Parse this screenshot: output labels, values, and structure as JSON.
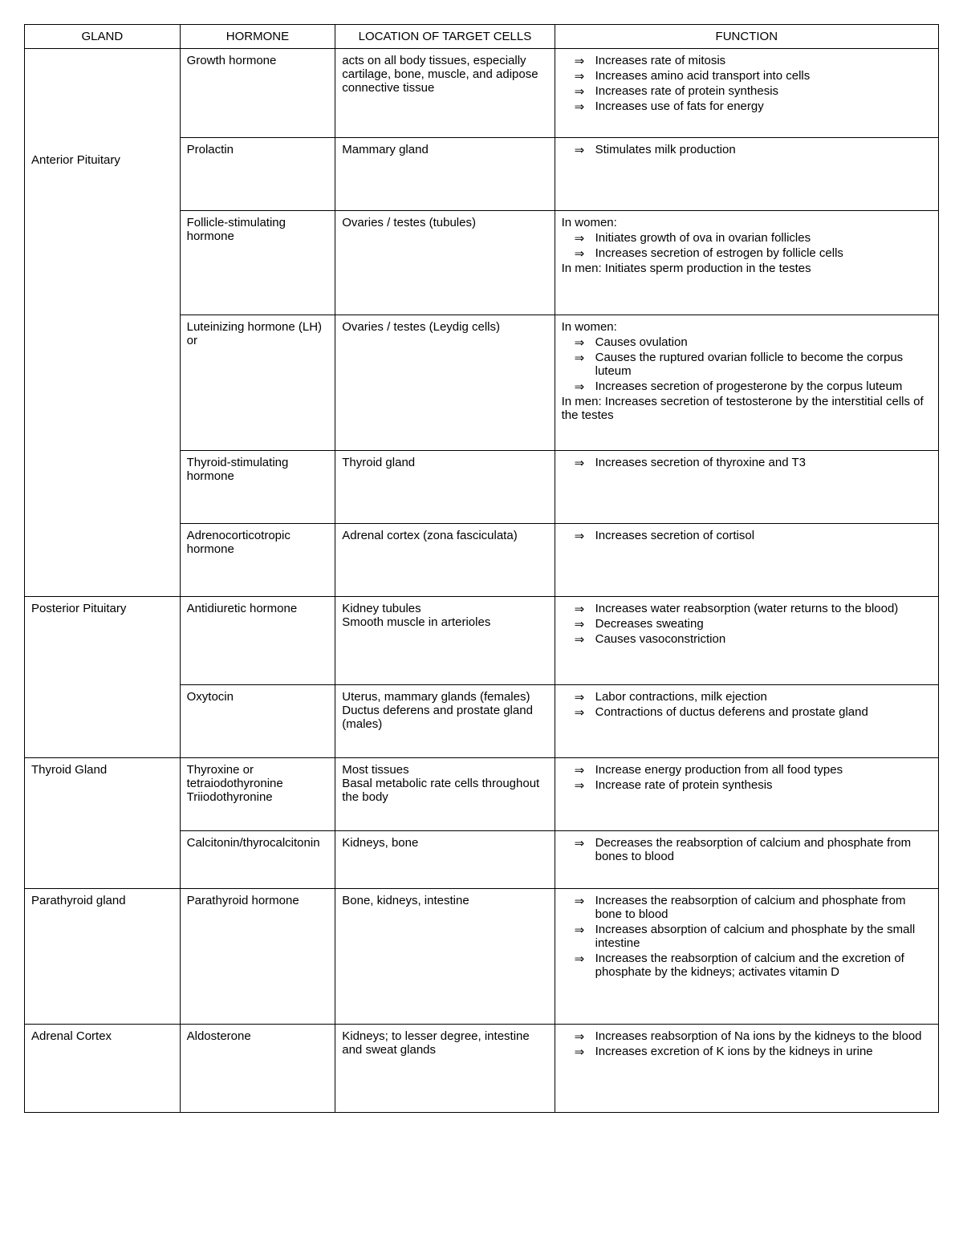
{
  "columns": [
    "GLAND",
    "HORMONE",
    "LOCATION OF TARGET CELLS",
    "FUNCTION"
  ],
  "rows": [
    {
      "gland": "Anterior Pituitary",
      "hormones": [
        {
          "hormone": "Growth hormone",
          "location": "acts on all body tissues, especially cartilage, bone, muscle, and adipose connective tissue",
          "function": {
            "items": [
              "Increases rate of mitosis",
              "Increases amino acid transport into cells",
              "Increases rate of protein synthesis",
              "Increases use of fats for energy"
            ]
          },
          "min_lines": 5
        },
        {
          "hormone": "Prolactin",
          "location": "Mammary gland",
          "function": {
            "items": [
              "Stimulates milk production"
            ]
          },
          "min_lines": 4
        },
        {
          "hormone": "Follicle-stimulating hormone",
          "location": "Ovaries / testes (tubules)",
          "function": {
            "lead1": "In women:",
            "items1": [
              "Initiates growth of ova in ovarian follicles",
              "Increases secretion of estrogen by follicle cells"
            ],
            "trail1": "In men: Initiates sperm production in the testes"
          },
          "min_lines": 6
        },
        {
          "hormone": "Luteinizing hormone (LH) or",
          "location": "Ovaries / testes (Leydig cells)",
          "function": {
            "lead1": "In women:",
            "items1": [
              "Causes ovulation",
              "Causes the ruptured ovarian follicle to become the corpus luteum",
              "Increases secretion of progesterone by the corpus luteum"
            ],
            "trail1": "In men: Increases secretion of testosterone by the interstitial cells of the testes"
          },
          "min_lines": 8
        },
        {
          "hormone": "Thyroid-stimulating hormone",
          "location": "Thyroid gland",
          "function": {
            "items": [
              "Increases secretion of thyroxine and T3"
            ]
          },
          "min_lines": 4
        },
        {
          "hormone": "Adrenocorticotropic hormone",
          "location": "Adrenal cortex (zona fasciculata)",
          "function": {
            "items": [
              "Increases secretion of cortisol"
            ]
          },
          "min_lines": 4
        }
      ]
    },
    {
      "gland": "Posterior Pituitary",
      "hormones": [
        {
          "hormone": "Antidiuretic hormone",
          "location": "Kidney tubules\nSmooth muscle in arterioles",
          "function": {
            "items": [
              "Increases water reabsorption (water returns to the blood)",
              "Decreases sweating",
              "Causes vasoconstriction"
            ]
          },
          "min_lines": 5
        },
        {
          "hormone": "Oxytocin",
          "location": "Uterus, mammary glands (females)\nDuctus deferens and prostate gland (males)",
          "function": {
            "items": [
              "Labor contractions, milk ejection",
              "Contractions of ductus deferens and prostate gland"
            ]
          },
          "min_lines": 4
        }
      ]
    },
    {
      "gland": "Thyroid Gland",
      "hormones": [
        {
          "hormone": "Thyroxine or tetraiodothyronine Triiodothyronine",
          "location": "Most tissues\nBasal metabolic rate cells throughout the body",
          "function": {
            "items": [
              "Increase energy production from all food types",
              "Increase rate of protein synthesis"
            ]
          },
          "min_lines": 4
        },
        {
          "hormone": "Calcitonin/thyrocalcitonin",
          "location": "Kidneys, bone",
          "function": {
            "items": [
              "Decreases the reabsorption of calcium and phosphate from bones to blood"
            ]
          },
          "min_lines": 3
        }
      ]
    },
    {
      "gland": "Parathyroid gland",
      "hormones": [
        {
          "hormone": "Parathyroid hormone",
          "location": "Bone, kidneys, intestine",
          "function": {
            "items": [
              "Increases the reabsorption of calcium and phosphate from bone to blood",
              "Increases absorption of calcium and phosphate by the small intestine",
              "Increases the reabsorption of calcium and the excretion of phosphate by the kidneys; activates vitamin D"
            ]
          },
          "min_lines": 8
        }
      ]
    },
    {
      "gland": "Adrenal Cortex",
      "hormones": [
        {
          "hormone": "Aldosterone",
          "location": "Kidneys; to lesser degree, intestine and sweat glands",
          "function": {
            "items": [
              "Increases reabsorption of Na ions by the kidneys to the blood",
              "Increases excretion of K ions by the kidneys in urine"
            ]
          },
          "min_lines": 5
        }
      ]
    }
  ],
  "style": {
    "font_family": "Arial",
    "font_size_pt": 11,
    "border_color": "#000000",
    "background_color": "#ffffff",
    "text_color": "#000000",
    "line_height_em": 1.3
  }
}
